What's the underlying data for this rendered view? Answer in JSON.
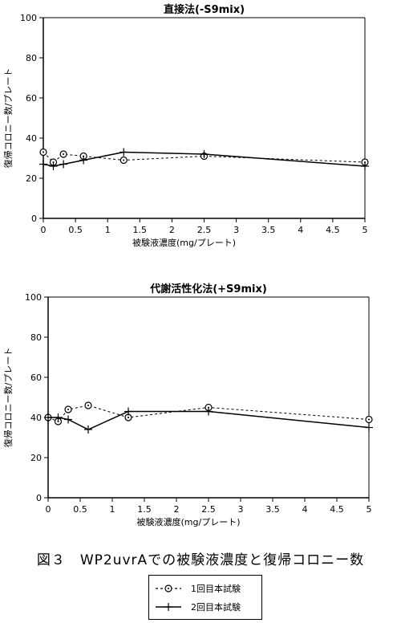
{
  "chart_data": [
    {
      "type": "line",
      "title": "直接法(-S9mix)",
      "xlabel": "被験液濃度(mg/プレート)",
      "ylabel": "復帰コロニー数/プレート",
      "xlim": [
        0,
        5
      ],
      "ylim": [
        0,
        100
      ],
      "xticks": [
        "0",
        "0.5",
        "1",
        "1.5",
        "2",
        "2.5",
        "3",
        "3.5",
        "4",
        "4.5",
        "5"
      ],
      "yticks": [
        "0",
        "20",
        "40",
        "60",
        "80",
        "100"
      ],
      "grid": false,
      "series": [
        {
          "name": "1回目本試験",
          "x": [
            0,
            0.156,
            0.313,
            0.625,
            1.25,
            2.5,
            5
          ],
          "values": [
            33,
            28,
            32,
            31,
            29,
            31,
            28
          ]
        },
        {
          "name": "2回目本試験",
          "x": [
            0,
            0.156,
            0.313,
            0.625,
            1.25,
            2.5,
            5
          ],
          "values": [
            27,
            26,
            27,
            29,
            33,
            32,
            26
          ]
        }
      ]
    },
    {
      "type": "line",
      "title": "代謝活性化法(+S9mix)",
      "xlabel": "被験液濃度(mg/プレート)",
      "ylabel": "復帰コロニー数/プレート",
      "xlim": [
        0,
        5
      ],
      "ylim": [
        0,
        100
      ],
      "xticks": [
        "0",
        "0.5",
        "1",
        "1.5",
        "2",
        "2.5",
        "3",
        "3.5",
        "4",
        "4.5",
        "5"
      ],
      "yticks": [
        "0",
        "20",
        "40",
        "60",
        "80",
        "100"
      ],
      "grid": false,
      "series": [
        {
          "name": "1回目本試験",
          "x": [
            0,
            0.156,
            0.313,
            0.625,
            1.25,
            2.5,
            5
          ],
          "values": [
            40,
            38,
            44,
            46,
            40,
            45,
            39
          ]
        },
        {
          "name": "2回目本試験",
          "x": [
            0,
            0.156,
            0.313,
            0.625,
            1.25,
            2.5,
            5
          ],
          "values": [
            40,
            40,
            39,
            34,
            43,
            43,
            35
          ]
        }
      ]
    }
  ],
  "caption": "図３　WP2uvrAでの被験液濃度と復帰コロニー数",
  "legend": {
    "items": [
      {
        "label": "1回目本試験",
        "style": "dashed",
        "marker": "circle-dot"
      },
      {
        "label": "2回目本試験",
        "style": "solid",
        "marker": "plus"
      }
    ]
  }
}
